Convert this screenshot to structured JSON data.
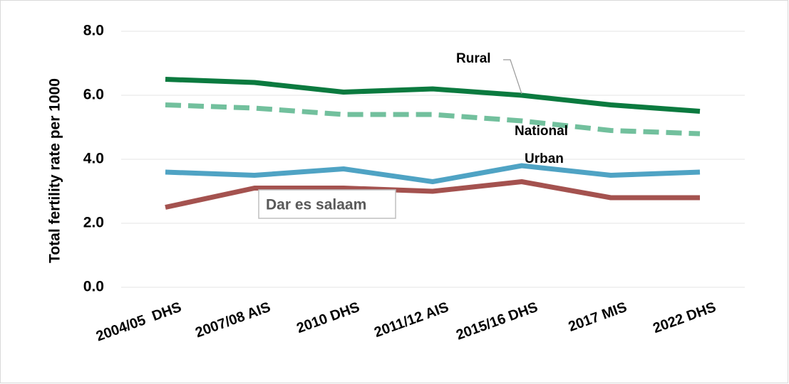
{
  "chart_data": {
    "type": "line",
    "y_label": "Total fertility rate per 1000",
    "categories": [
      "2004/05  DHS",
      "2007/08 AIS",
      "2010 DHS",
      "2011/12 AIS",
      "2015/16 DHS",
      "2017 MIS",
      "2022 DHS"
    ],
    "series": [
      {
        "name": "Rural",
        "color": "#0b7a3f",
        "dashed": false,
        "values": [
          6.5,
          6.4,
          6.1,
          6.2,
          6.0,
          5.7,
          5.5
        ]
      },
      {
        "name": "National",
        "color": "#72c09d",
        "dashed": true,
        "values": [
          5.7,
          5.6,
          5.4,
          5.4,
          5.2,
          4.9,
          4.8
        ]
      },
      {
        "name": "Urban",
        "color": "#4fa3c4",
        "dashed": false,
        "values": [
          3.6,
          3.5,
          3.7,
          3.3,
          3.8,
          3.5,
          3.6
        ]
      },
      {
        "name": "Dar es salaam",
        "color": "#a4524f",
        "dashed": false,
        "values": [
          2.5,
          3.1,
          3.1,
          3.0,
          3.3,
          2.8,
          2.8
        ]
      }
    ],
    "ylim": [
      0,
      8
    ],
    "yticks": [
      {
        "value": 0,
        "label": "0.0"
      },
      {
        "value": 2,
        "label": "2.0"
      },
      {
        "value": 4,
        "label": "4.0"
      },
      {
        "value": 6,
        "label": "6.0"
      },
      {
        "value": 8,
        "label": "8.0"
      }
    ],
    "grid": true
  }
}
